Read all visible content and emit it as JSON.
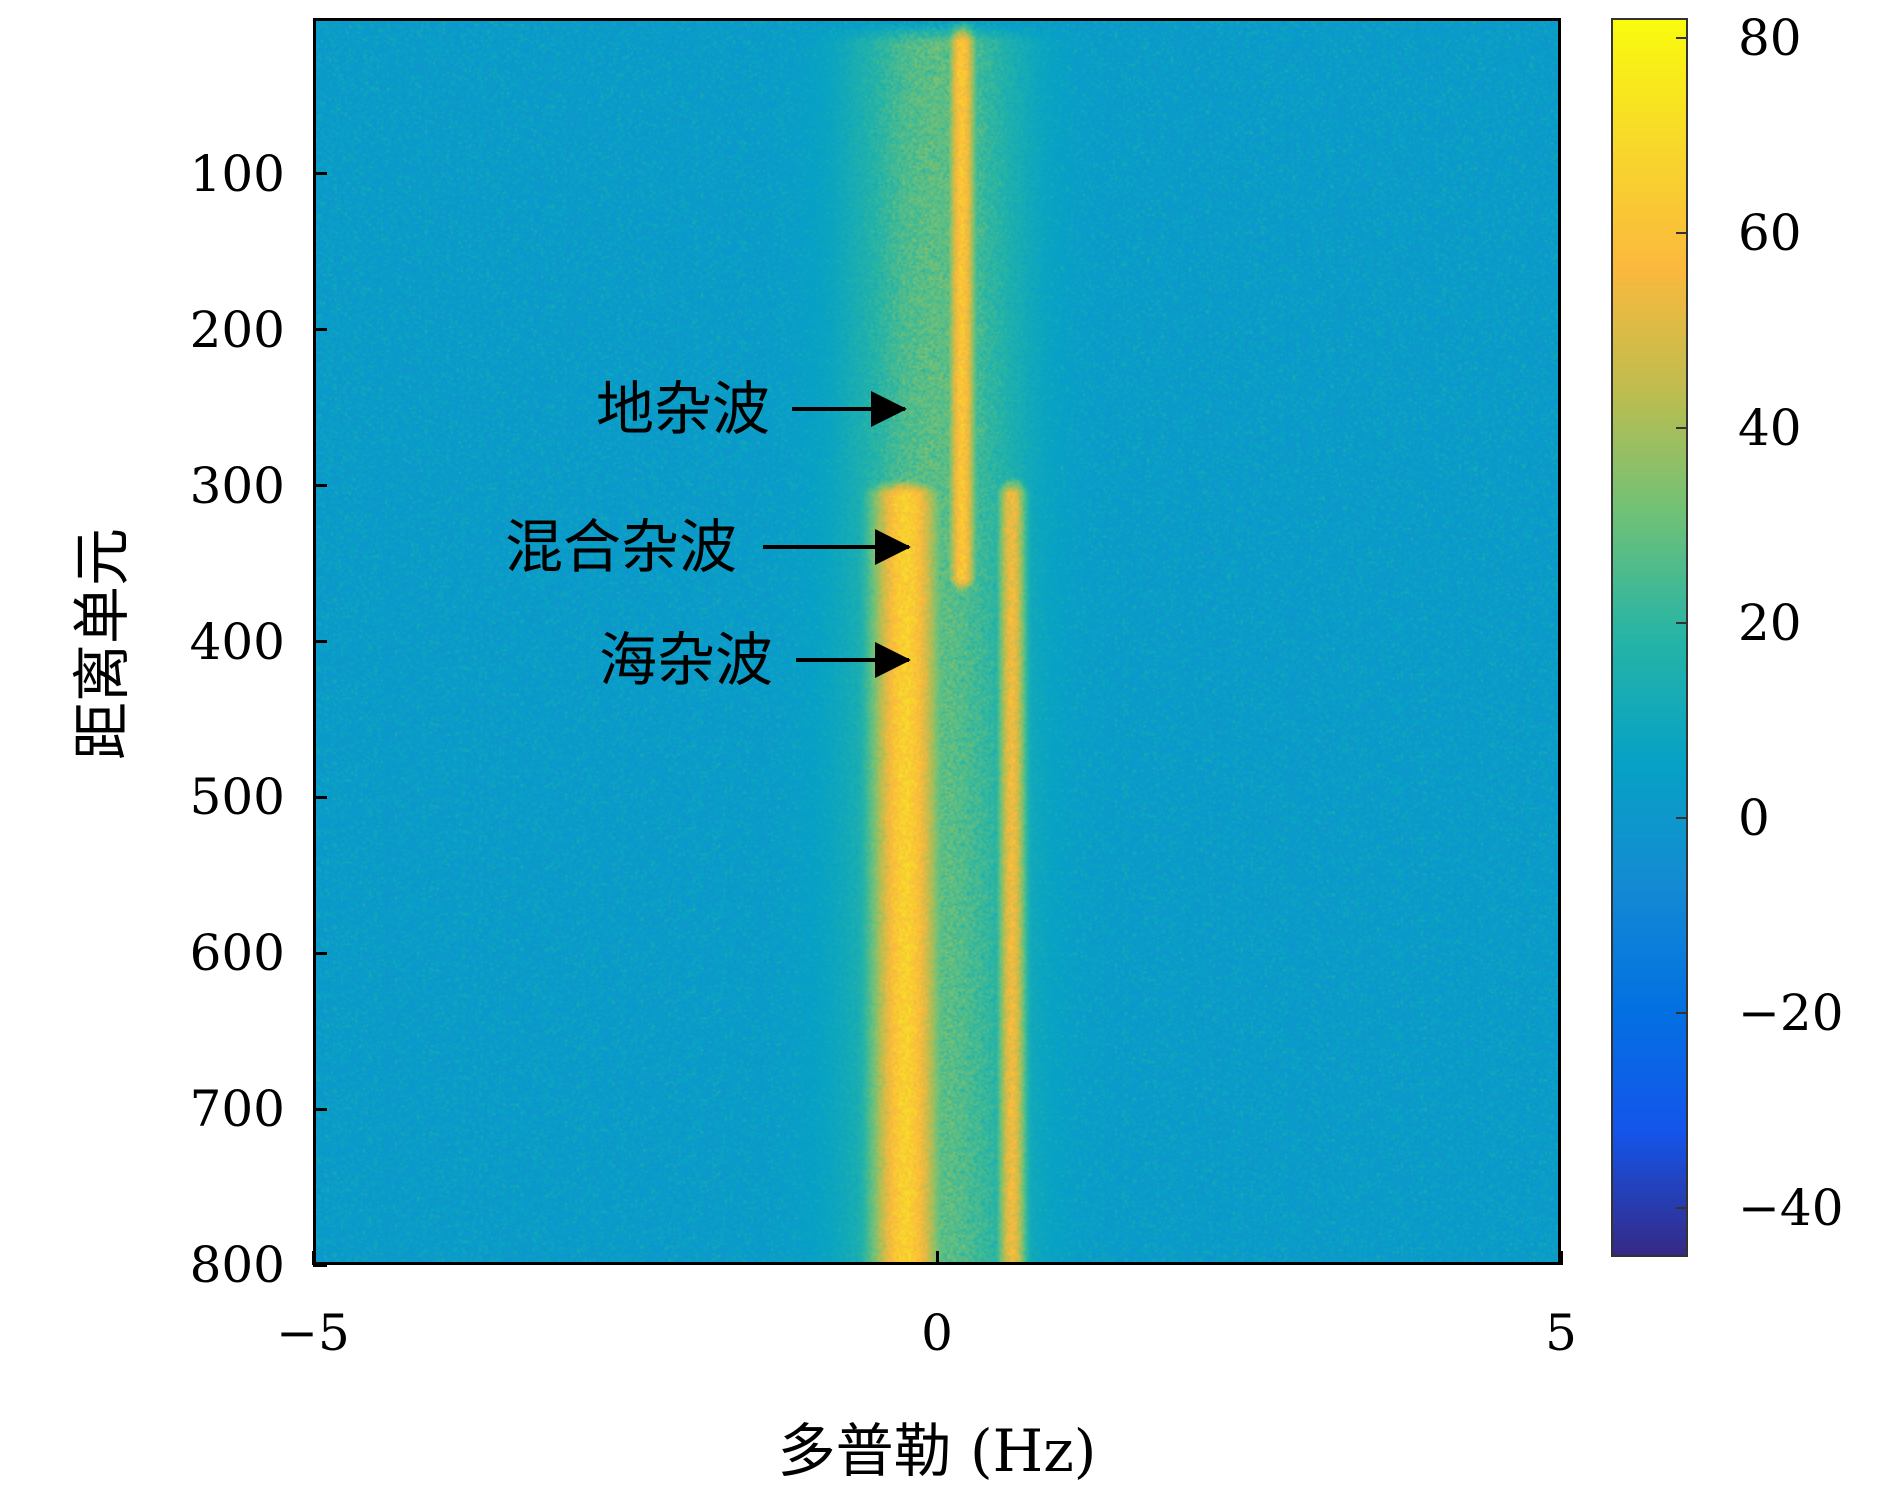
{
  "chart_data": {
    "type": "heatmap",
    "xlabel": "多普勒 (Hz)",
    "ylabel": "距离单元",
    "xlim": [
      -5,
      5
    ],
    "ylim": [
      0,
      800
    ],
    "y_reversed": true,
    "xticks": [
      {
        "value": -5,
        "label": "−5"
      },
      {
        "value": 0,
        "label": "0"
      },
      {
        "value": 5,
        "label": "5"
      }
    ],
    "yticks": [
      {
        "value": 100,
        "label": "100"
      },
      {
        "value": 200,
        "label": "200"
      },
      {
        "value": 300,
        "label": "300"
      },
      {
        "value": 400,
        "label": "400"
      },
      {
        "value": 500,
        "label": "500"
      },
      {
        "value": 600,
        "label": "600"
      },
      {
        "value": 700,
        "label": "700"
      },
      {
        "value": 800,
        "label": "800"
      }
    ],
    "colorbar": {
      "colormap": "parula",
      "clim": [
        -45,
        82
      ],
      "ticks": [
        {
          "value": 80,
          "label": "80"
        },
        {
          "value": 60,
          "label": "60"
        },
        {
          "value": 40,
          "label": "40"
        },
        {
          "value": 20,
          "label": "20"
        },
        {
          "value": 0,
          "label": "0"
        },
        {
          "value": -20,
          "label": "−20"
        },
        {
          "value": -40,
          "label": "−40"
        }
      ]
    },
    "background_level": 2,
    "clutter_bands": [
      {
        "name": "ground",
        "doppler_hz": 0.2,
        "width_hz": 0.12,
        "range_from": 0,
        "range_to": 360,
        "level": 62
      },
      {
        "name": "main",
        "doppler_hz": -0.25,
        "width_hz": 0.3,
        "range_from": 290,
        "range_to": 800,
        "level": 66
      },
      {
        "name": "sea",
        "doppler_hz": 0.6,
        "width_hz": 0.12,
        "range_from": 290,
        "range_to": 800,
        "level": 55
      },
      {
        "name": "spread",
        "doppler_hz": 0.0,
        "width_hz": 0.75,
        "range_from": 0,
        "range_to": 800,
        "level": 28
      }
    ],
    "annotations": [
      {
        "text": "地杂波",
        "doppler_hz": -0.25,
        "range": 250
      },
      {
        "text": "混合杂波",
        "doppler_hz": -0.25,
        "range": 340
      },
      {
        "text": "海杂波",
        "doppler_hz": -0.25,
        "range": 410
      }
    ]
  }
}
